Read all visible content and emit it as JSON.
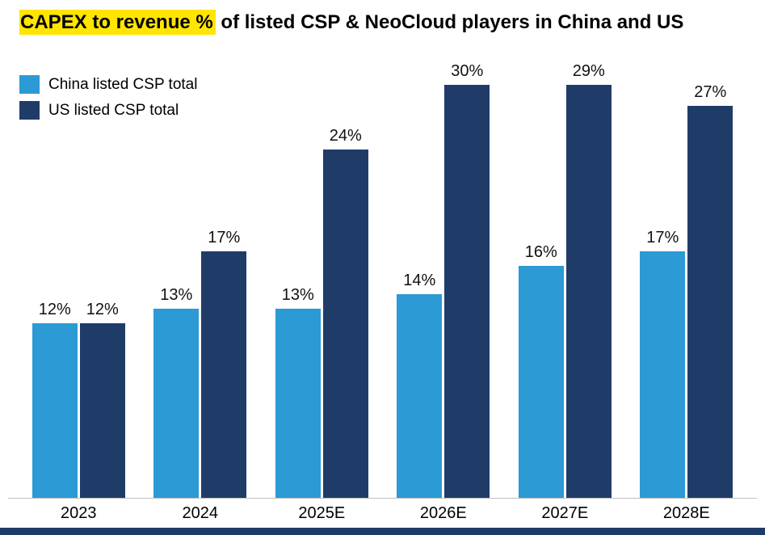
{
  "title": {
    "highlight": "CAPEX to revenue %",
    "rest": " of listed CSP & NeoCloud players in China and US"
  },
  "colors": {
    "title_highlight": "#FFE500",
    "axis_line": "#bfbfbf",
    "footer_bar": "#1F3C69",
    "china_series": "#2B9AD5",
    "us_series": "#1F3C69"
  },
  "chart_data": {
    "type": "bar",
    "title": "CAPEX to revenue % of listed CSP & NeoCloud players in China and US",
    "categories": [
      "2023",
      "2024",
      "2025E",
      "2026E",
      "2027E",
      "2028E"
    ],
    "series": [
      {
        "key": "china",
        "name": "China listed CSP total",
        "color": "#2B9AD5",
        "values": [
          12,
          13,
          13,
          14,
          16,
          17
        ]
      },
      {
        "key": "us",
        "name": "US listed CSP total",
        "color": "#1F3C69",
        "values": [
          12,
          17,
          24,
          30,
          29,
          27
        ]
      }
    ],
    "value_suffix": "%",
    "ylim": [
      0,
      30
    ],
    "grid": false,
    "legend_position": "top-left",
    "xlabel": "",
    "ylabel": ""
  }
}
